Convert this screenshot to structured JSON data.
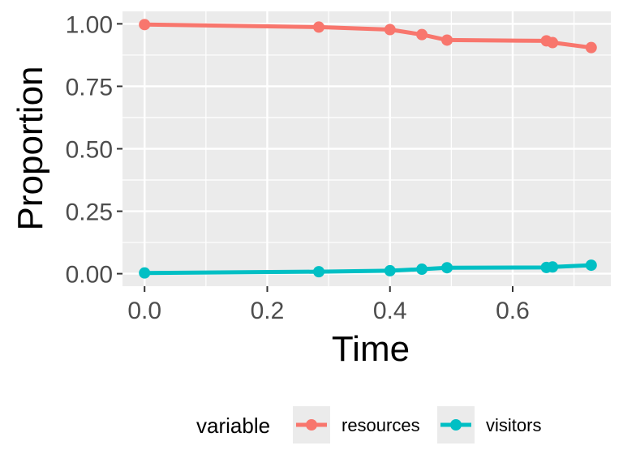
{
  "chart_data": {
    "type": "line",
    "xlabel": "Time",
    "ylabel": "Proportion",
    "xlim": [
      -0.036,
      0.76
    ],
    "ylim": [
      -0.05,
      1.05
    ],
    "x_ticks": [
      0.0,
      0.2,
      0.4,
      0.6
    ],
    "x_tick_labels": [
      "0.0",
      "0.2",
      "0.4",
      "0.6"
    ],
    "y_ticks": [
      0.0,
      0.25,
      0.5,
      0.75,
      1.0
    ],
    "y_tick_labels": [
      "0.00",
      "0.25",
      "0.50",
      "0.75",
      "1.00"
    ],
    "grid": true,
    "legend": {
      "title": "variable",
      "position": "bottom"
    },
    "x": [
      0.0,
      0.284,
      0.4,
      0.452,
      0.493,
      0.655,
      0.665,
      0.728
    ],
    "series": [
      {
        "name": "resources",
        "color": "#F8766D",
        "values": [
          0.997,
          0.987,
          0.977,
          0.957,
          0.935,
          0.932,
          0.925,
          0.905
        ]
      },
      {
        "name": "visitors",
        "color": "#00BFC4",
        "values": [
          0.003,
          0.008,
          0.012,
          0.018,
          0.024,
          0.025,
          0.027,
          0.034
        ]
      }
    ]
  }
}
